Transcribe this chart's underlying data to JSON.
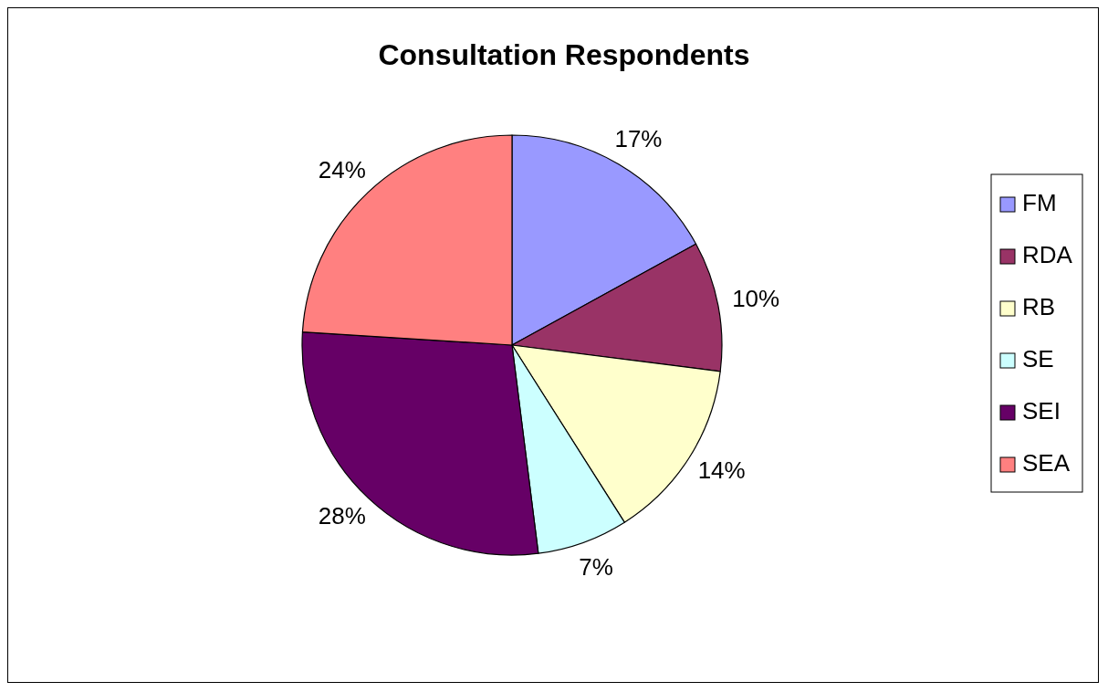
{
  "chart_data": {
    "type": "pie",
    "title": "Consultation Respondents",
    "categories": [
      "FM",
      "RDA",
      "RB",
      "SE",
      "SEI",
      "SEA"
    ],
    "values": [
      17,
      10,
      14,
      7,
      28,
      24
    ],
    "value_labels": [
      "17%",
      "10%",
      "14%",
      "7%",
      "28%",
      "24%"
    ],
    "colors": [
      "#9999ff",
      "#993366",
      "#ffffcc",
      "#ccffff",
      "#660066",
      "#ff8080"
    ],
    "legend": "right"
  }
}
